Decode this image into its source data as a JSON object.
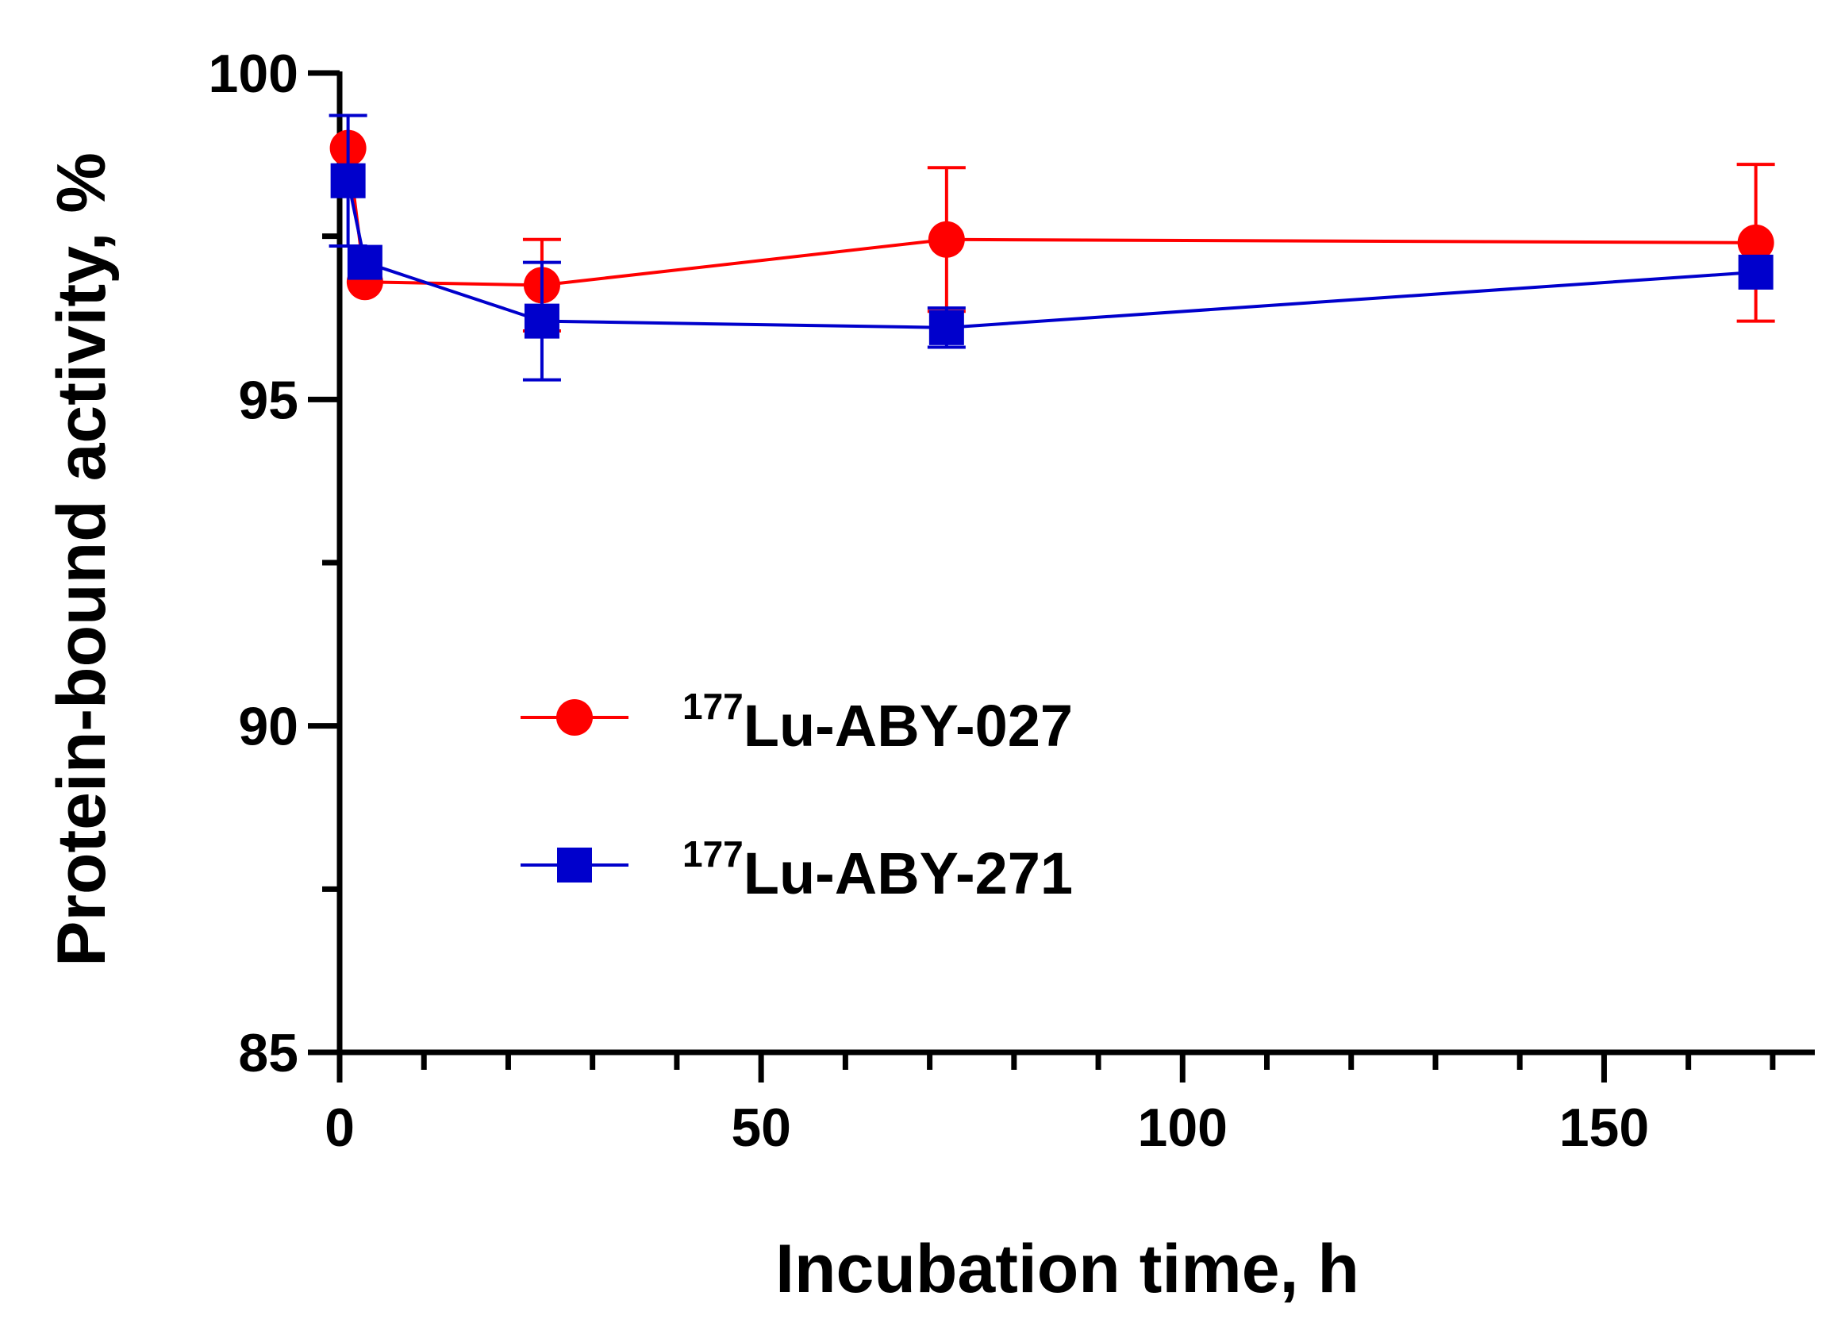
{
  "chart_data": {
    "type": "line",
    "title": "",
    "xlabel": "Incubation time, h",
    "ylabel": "Protein-bound activity, %",
    "xlim": [
      0,
      175
    ],
    "ylim": [
      85,
      100
    ],
    "x_major_ticks": [
      0,
      50,
      100,
      150
    ],
    "y_major_ticks": [
      85,
      90,
      95,
      100
    ],
    "x_tick_labels": [
      "0",
      "50",
      "100",
      "150"
    ],
    "y_tick_labels": [
      "85",
      "90",
      "95",
      "100"
    ],
    "legend_position": "center-left",
    "series": [
      {
        "name": "177Lu-ABY-027",
        "label_superscript": "177",
        "label_main": "Lu-ABY-027",
        "color": "#ff0000",
        "marker": "circle",
        "x": [
          1,
          3,
          24,
          72,
          168
        ],
        "y": [
          98.85,
          96.8,
          96.75,
          97.45,
          97.4
        ],
        "error": [
          0.0,
          0.0,
          0.7,
          1.1,
          1.2
        ]
      },
      {
        "name": "177Lu-ABY-271",
        "label_superscript": "177",
        "label_main": "Lu-ABY-271",
        "color": "#0000cc",
        "marker": "square",
        "x": [
          1,
          3,
          24,
          72,
          168
        ],
        "y": [
          98.35,
          97.1,
          96.2,
          96.1,
          96.95
        ],
        "error": [
          1.0,
          0.0,
          0.9,
          0.3,
          0.0
        ]
      }
    ]
  }
}
